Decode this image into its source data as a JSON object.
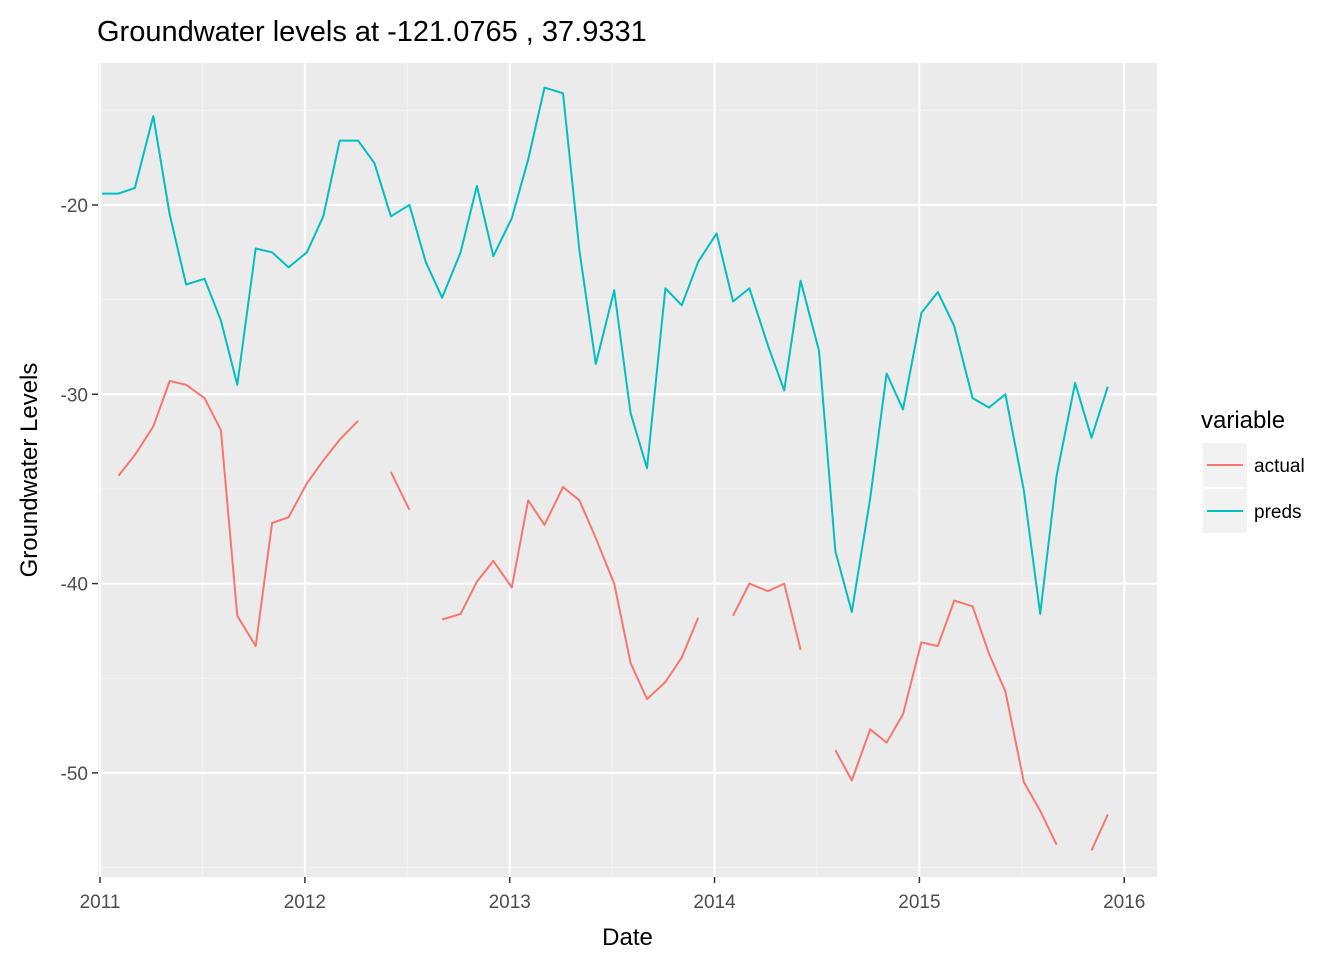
{
  "chart_data": {
    "type": "line",
    "title": "Groundwater levels at  -121.0765 , 37.9331",
    "xlabel": "Date",
    "ylabel": "Groundwater Levels",
    "xlim": [
      2010.99,
      2016.16
    ],
    "ylim": [
      -55.5,
      -12.5
    ],
    "x_ticks": [
      2011,
      2012,
      2013,
      2014,
      2015,
      2016
    ],
    "y_ticks": [
      -50,
      -40,
      -30,
      -20
    ],
    "grid": true,
    "legend": {
      "title": "variable",
      "position": "right"
    },
    "series": [
      {
        "name": "actual",
        "color": "#F8766D",
        "points": [
          {
            "x": 2011.09,
            "y": -34.3
          },
          {
            "x": 2011.17,
            "y": -33.2
          },
          {
            "x": 2011.26,
            "y": -31.7
          },
          {
            "x": 2011.34,
            "y": -29.3
          },
          {
            "x": 2011.42,
            "y": -29.5
          },
          {
            "x": 2011.51,
            "y": -30.2
          },
          {
            "x": 2011.59,
            "y": -31.9
          },
          {
            "x": 2011.67,
            "y": -41.7
          },
          {
            "x": 2011.76,
            "y": -43.3
          },
          {
            "x": 2011.84,
            "y": -36.8
          },
          {
            "x": 2011.92,
            "y": -36.5
          },
          {
            "x": 2012.01,
            "y": -34.7
          },
          {
            "x": 2012.09,
            "y": -33.5
          },
          {
            "x": 2012.17,
            "y": -32.4
          },
          {
            "x": 2012.26,
            "y": -31.4
          },
          {
            "x": 2012.34,
            "y": null
          },
          {
            "x": 2012.42,
            "y": -34.1
          },
          {
            "x": 2012.51,
            "y": -36.1
          },
          {
            "x": 2012.59,
            "y": null
          },
          {
            "x": 2012.67,
            "y": -41.9
          },
          {
            "x": 2012.76,
            "y": -41.6
          },
          {
            "x": 2012.84,
            "y": -39.9
          },
          {
            "x": 2012.92,
            "y": -38.8
          },
          {
            "x": 2013.01,
            "y": -40.2
          },
          {
            "x": 2013.09,
            "y": -35.6
          },
          {
            "x": 2013.17,
            "y": -36.9
          },
          {
            "x": 2013.26,
            "y": -34.9
          },
          {
            "x": 2013.34,
            "y": -35.6
          },
          {
            "x": 2013.42,
            "y": -37.6
          },
          {
            "x": 2013.51,
            "y": -40.0
          },
          {
            "x": 2013.59,
            "y": -44.2
          },
          {
            "x": 2013.67,
            "y": -46.1
          },
          {
            "x": 2013.76,
            "y": -45.2
          },
          {
            "x": 2013.84,
            "y": -43.9
          },
          {
            "x": 2013.92,
            "y": -41.8
          },
          {
            "x": 2014.01,
            "y": null
          },
          {
            "x": 2014.09,
            "y": -41.7
          },
          {
            "x": 2014.17,
            "y": -40.0
          },
          {
            "x": 2014.26,
            "y": -40.4
          },
          {
            "x": 2014.34,
            "y": -40.0
          },
          {
            "x": 2014.42,
            "y": -43.5
          },
          {
            "x": 2014.51,
            "y": null
          },
          {
            "x": 2014.59,
            "y": -48.8
          },
          {
            "x": 2014.67,
            "y": -50.4
          },
          {
            "x": 2014.76,
            "y": -47.7
          },
          {
            "x": 2014.84,
            "y": -48.4
          },
          {
            "x": 2014.92,
            "y": -46.9
          },
          {
            "x": 2015.01,
            "y": -43.1
          },
          {
            "x": 2015.09,
            "y": -43.3
          },
          {
            "x": 2015.17,
            "y": -40.9
          },
          {
            "x": 2015.26,
            "y": -41.2
          },
          {
            "x": 2015.34,
            "y": -43.7
          },
          {
            "x": 2015.42,
            "y": -45.7
          },
          {
            "x": 2015.51,
            "y": -50.5
          },
          {
            "x": 2015.59,
            "y": -52.0
          },
          {
            "x": 2015.67,
            "y": -53.8
          },
          {
            "x": 2015.76,
            "y": null
          },
          {
            "x": 2015.84,
            "y": -54.1
          },
          {
            "x": 2015.92,
            "y": -52.2
          }
        ]
      },
      {
        "name": "preds",
        "color": "#00BFC4",
        "points": [
          {
            "x": 2011.01,
            "y": -19.4
          },
          {
            "x": 2011.09,
            "y": -19.4
          },
          {
            "x": 2011.17,
            "y": -19.1
          },
          {
            "x": 2011.26,
            "y": -15.3
          },
          {
            "x": 2011.34,
            "y": -20.5
          },
          {
            "x": 2011.42,
            "y": -24.2
          },
          {
            "x": 2011.51,
            "y": -23.9
          },
          {
            "x": 2011.59,
            "y": -26.1
          },
          {
            "x": 2011.67,
            "y": -29.5
          },
          {
            "x": 2011.76,
            "y": -22.3
          },
          {
            "x": 2011.84,
            "y": -22.5
          },
          {
            "x": 2011.92,
            "y": -23.3
          },
          {
            "x": 2012.01,
            "y": -22.5
          },
          {
            "x": 2012.09,
            "y": -20.6
          },
          {
            "x": 2012.17,
            "y": -16.6
          },
          {
            "x": 2012.26,
            "y": -16.6
          },
          {
            "x": 2012.34,
            "y": -17.8
          },
          {
            "x": 2012.42,
            "y": -20.6
          },
          {
            "x": 2012.51,
            "y": -20.0
          },
          {
            "x": 2012.59,
            "y": -23.0
          },
          {
            "x": 2012.67,
            "y": -24.9
          },
          {
            "x": 2012.76,
            "y": -22.5
          },
          {
            "x": 2012.84,
            "y": -19.0
          },
          {
            "x": 2012.92,
            "y": -22.7
          },
          {
            "x": 2013.01,
            "y": -20.7
          },
          {
            "x": 2013.09,
            "y": -17.6
          },
          {
            "x": 2013.17,
            "y": -13.8
          },
          {
            "x": 2013.26,
            "y": -14.1
          },
          {
            "x": 2013.34,
            "y": -22.4
          },
          {
            "x": 2013.42,
            "y": -28.4
          },
          {
            "x": 2013.51,
            "y": -24.5
          },
          {
            "x": 2013.59,
            "y": -31.0
          },
          {
            "x": 2013.67,
            "y": -33.9
          },
          {
            "x": 2013.76,
            "y": -24.4
          },
          {
            "x": 2013.84,
            "y": -25.3
          },
          {
            "x": 2013.92,
            "y": -23.0
          },
          {
            "x": 2014.01,
            "y": -21.5
          },
          {
            "x": 2014.09,
            "y": -25.1
          },
          {
            "x": 2014.17,
            "y": -24.4
          },
          {
            "x": 2014.26,
            "y": -27.4
          },
          {
            "x": 2014.34,
            "y": -29.8
          },
          {
            "x": 2014.42,
            "y": -24.0
          },
          {
            "x": 2014.51,
            "y": -27.7
          },
          {
            "x": 2014.59,
            "y": -38.3
          },
          {
            "x": 2014.67,
            "y": -41.5
          },
          {
            "x": 2014.76,
            "y": -35.5
          },
          {
            "x": 2014.84,
            "y": -28.9
          },
          {
            "x": 2014.92,
            "y": -30.8
          },
          {
            "x": 2015.01,
            "y": -25.7
          },
          {
            "x": 2015.09,
            "y": -24.6
          },
          {
            "x": 2015.17,
            "y": -26.4
          },
          {
            "x": 2015.26,
            "y": -30.2
          },
          {
            "x": 2015.34,
            "y": -30.7
          },
          {
            "x": 2015.42,
            "y": -30.0
          },
          {
            "x": 2015.51,
            "y": -35.1
          },
          {
            "x": 2015.59,
            "y": -41.6
          },
          {
            "x": 2015.67,
            "y": -34.3
          },
          {
            "x": 2015.76,
            "y": -29.4
          },
          {
            "x": 2015.84,
            "y": -32.3
          },
          {
            "x": 2015.92,
            "y": -29.6
          }
        ]
      }
    ]
  }
}
